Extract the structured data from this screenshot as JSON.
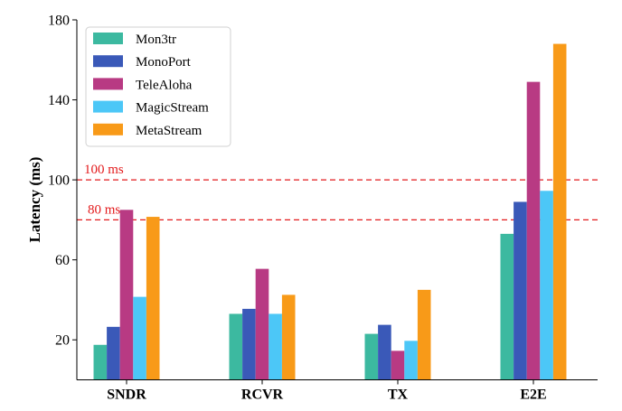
{
  "chart_data": {
    "type": "bar",
    "title": "",
    "xlabel": "",
    "ylabel": "Latency (ms)",
    "ylim": [
      0,
      180
    ],
    "yticks": [
      20,
      60,
      100,
      140,
      180
    ],
    "categories": [
      "SNDR",
      "RCVR",
      "TX",
      "E2E"
    ],
    "series": [
      {
        "name": "Mon3tr",
        "color": "#3cb9a0",
        "values": [
          17.5,
          33,
          23,
          73
        ]
      },
      {
        "name": "MonoPort",
        "color": "#3a59b8",
        "values": [
          26.5,
          35.5,
          27.5,
          89
        ]
      },
      {
        "name": "TeleAloha",
        "color": "#b83a83",
        "values": [
          85,
          55.5,
          14.5,
          149
        ]
      },
      {
        "name": "MagicStream",
        "color": "#4cc7f7",
        "values": [
          41.5,
          33,
          19.5,
          94.5
        ]
      },
      {
        "name": "MetaStream",
        "color": "#f89a18",
        "values": [
          81.5,
          42.5,
          45,
          168
        ]
      }
    ],
    "reference_lines": [
      {
        "value": 100,
        "label": "100 ms",
        "color": "#e31a1c"
      },
      {
        "value": 80,
        "label": "80 ms",
        "color": "#e31a1c"
      }
    ],
    "legend_position": "top-left"
  }
}
